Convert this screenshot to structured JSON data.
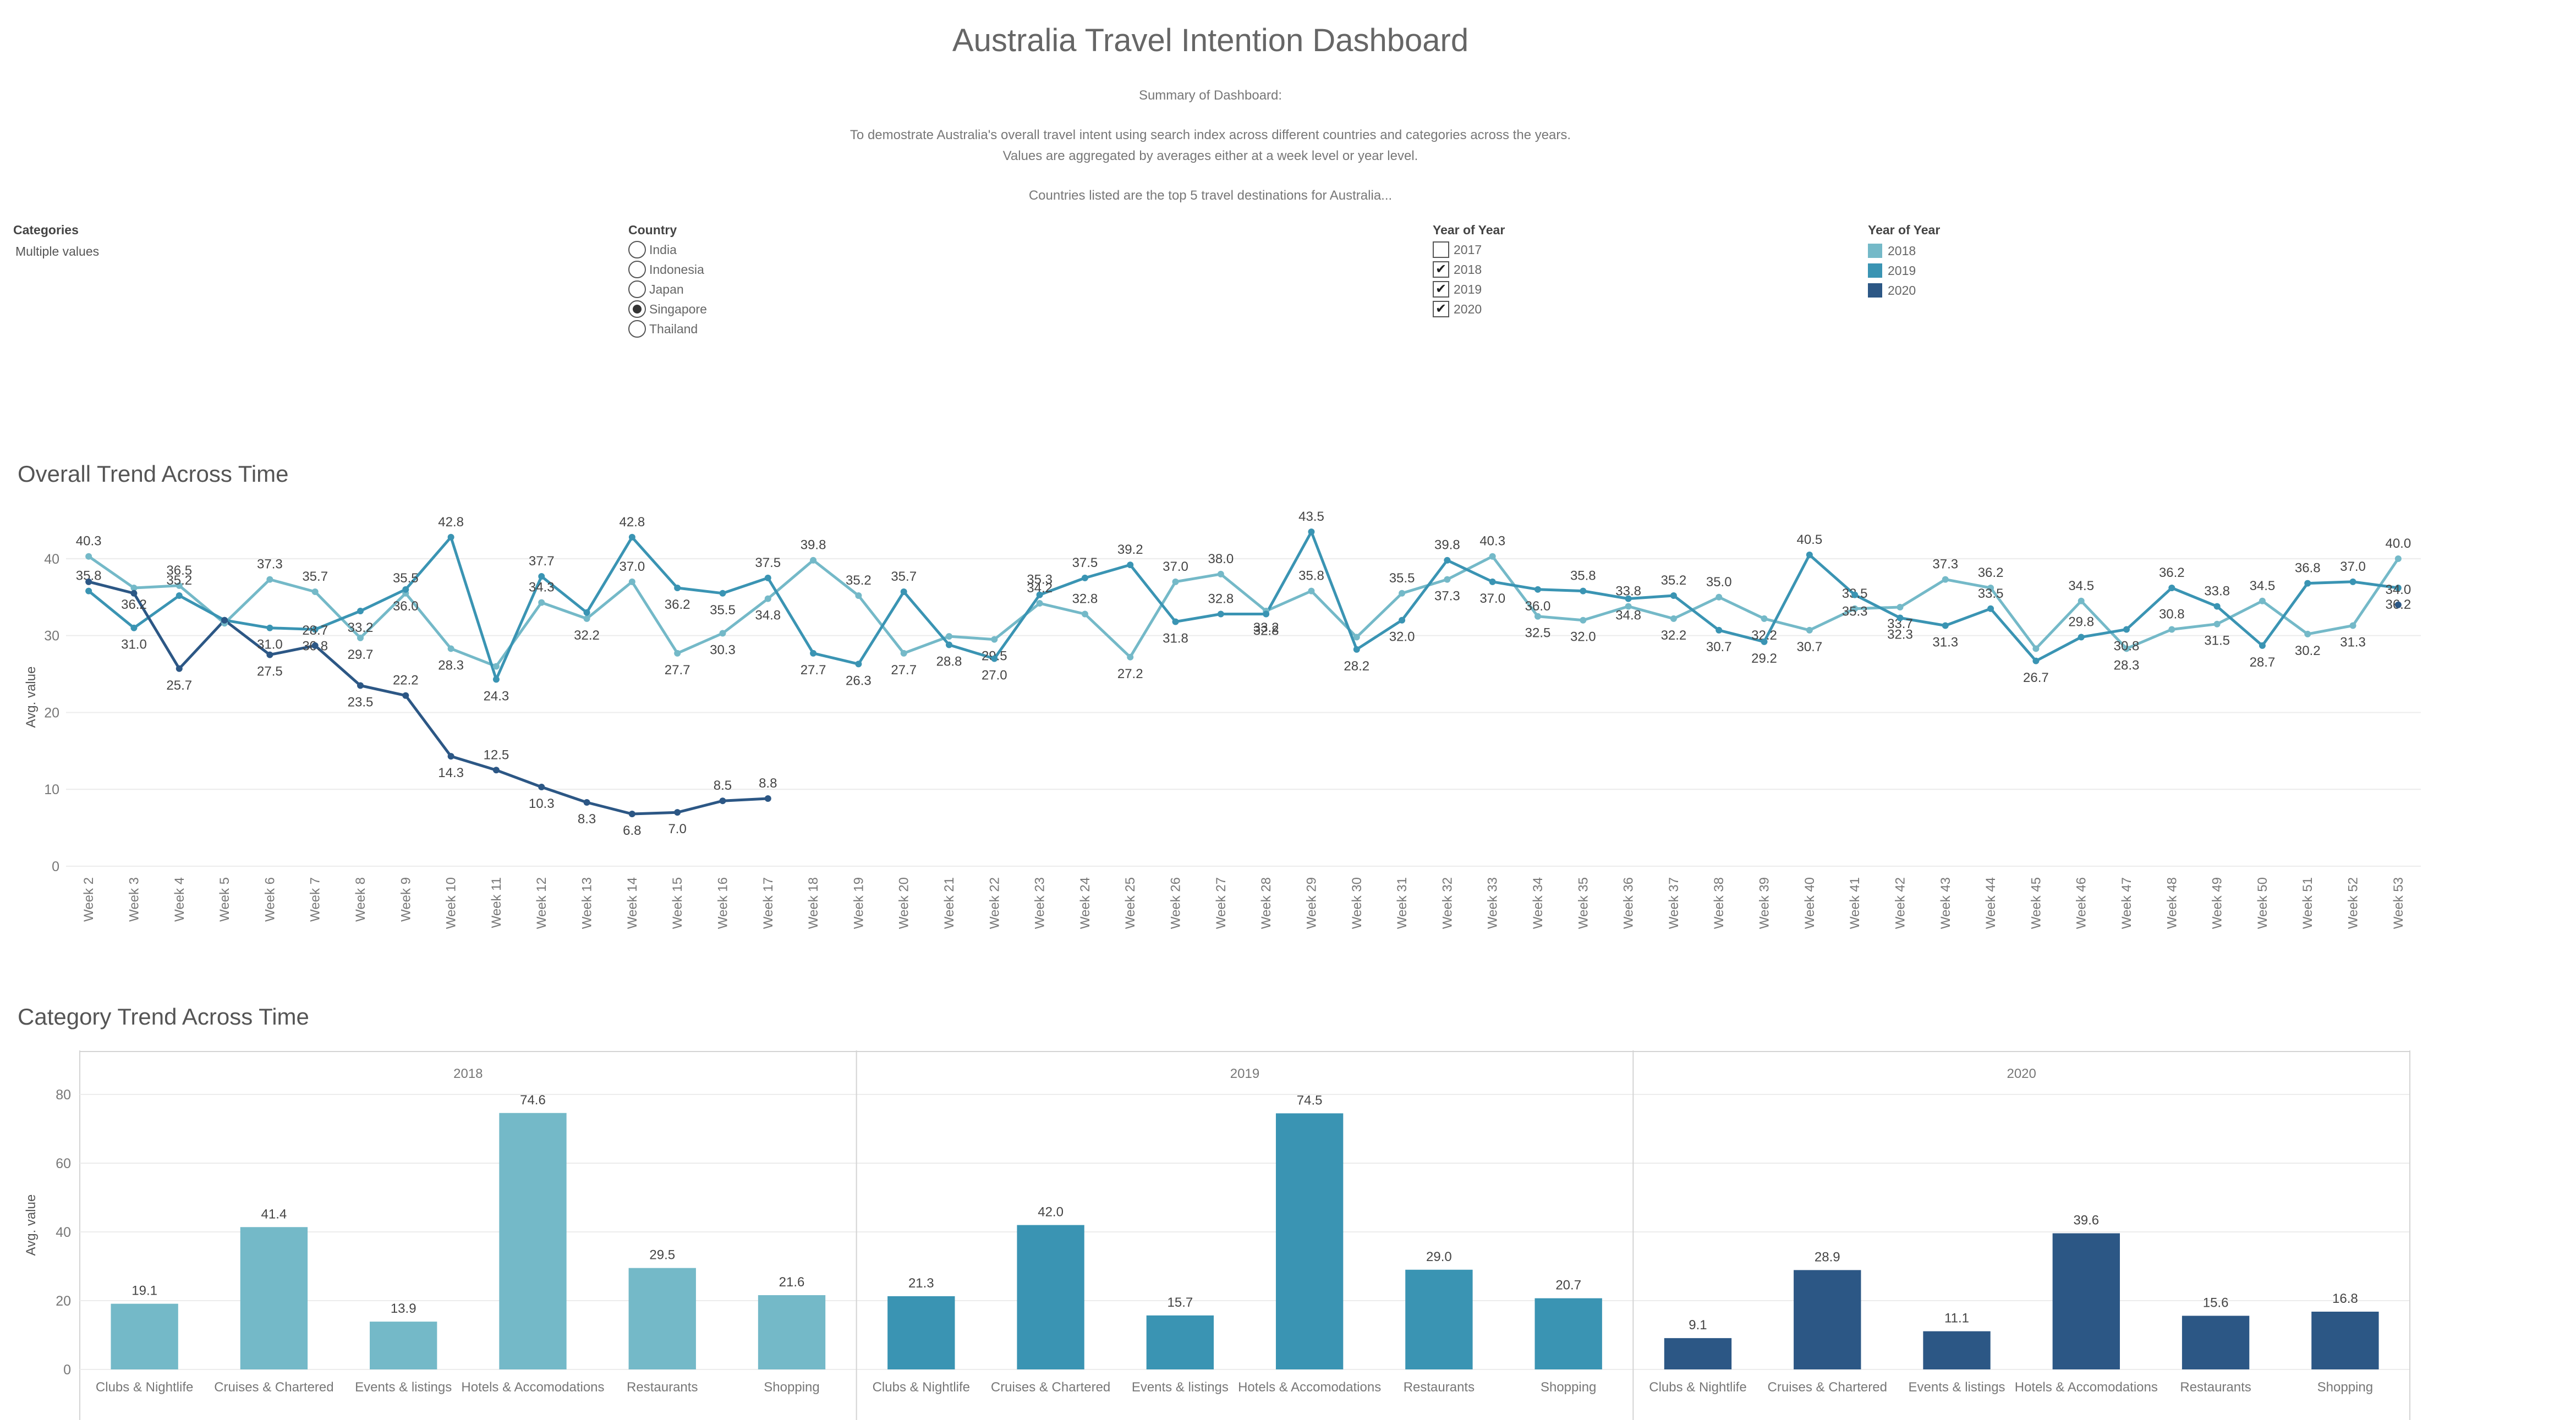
{
  "dashboard": {
    "title": "Australia Travel Intention Dashboard",
    "summary_heading": "Summary of Dashboard:",
    "summary_line1": "To demostrate Australia's overall travel intent using search index across different countries and categories across the years.",
    "summary_line2": "Values are aggregated by averages either at a week level or year level.",
    "summary_line3": "Countries listed are the top 5 travel destinations for Australia..."
  },
  "filters": {
    "categories": {
      "label": "Categories",
      "value": "Multiple values"
    },
    "country": {
      "label": "Country",
      "options": [
        "India",
        "Indonesia",
        "Japan",
        "Singapore",
        "Thailand"
      ],
      "selected": "Singapore"
    },
    "year": {
      "label": "Year of Year",
      "options": [
        {
          "label": "2017",
          "checked": false
        },
        {
          "label": "2018",
          "checked": true
        },
        {
          "label": "2019",
          "checked": true
        },
        {
          "label": "2020",
          "checked": true
        }
      ]
    },
    "legend": {
      "label": "Year of Year",
      "items": [
        {
          "label": "2018",
          "color": "#74b9c8"
        },
        {
          "label": "2019",
          "color": "#3a94b3"
        },
        {
          "label": "2020",
          "color": "#2c5785"
        }
      ]
    }
  },
  "chart_data": [
    {
      "type": "line",
      "title": "Overall Trend Across Time",
      "ylabel": "Avg. value",
      "ylim": [
        0,
        44
      ],
      "yticks": [
        0,
        10,
        20,
        30,
        40
      ],
      "grid": true,
      "categories": [
        "Week 2",
        "Week 3",
        "Week 4",
        "Week 5",
        "Week 6",
        "Week 7",
        "Week 8",
        "Week 9",
        "Week 10",
        "Week 11",
        "Week 12",
        "Week 13",
        "Week 14",
        "Week 15",
        "Week 16",
        "Week 17",
        "Week 18",
        "Week 19",
        "Week 20",
        "Week 21",
        "Week 22",
        "Week 23",
        "Week 24",
        "Week 25",
        "Week 26",
        "Week 27",
        "Week 28",
        "Week 29",
        "Week 30",
        "Week 31",
        "Week 32",
        "Week 33",
        "Week 34",
        "Week 35",
        "Week 36",
        "Week 37",
        "Week 38",
        "Week 39",
        "Week 40",
        "Week 41",
        "Week 42",
        "Week 43",
        "Week 44",
        "Week 45",
        "Week 46",
        "Week 47",
        "Week 48",
        "Week 49",
        "Week 50",
        "Week 51",
        "Week 52",
        "Week 53"
      ],
      "series": [
        {
          "name": "2018",
          "color": "#74b9c8",
          "values": [
            40.3,
            36.2,
            36.5,
            31.6,
            37.3,
            35.7,
            29.7,
            35.5,
            28.3,
            26.0,
            34.3,
            32.2,
            37.0,
            27.7,
            30.3,
            34.8,
            39.8,
            35.2,
            27.7,
            29.9,
            29.5,
            34.2,
            32.8,
            27.2,
            37.0,
            38.0,
            33.2,
            35.8,
            29.8,
            35.5,
            37.3,
            40.3,
            32.5,
            32.0,
            33.8,
            32.2,
            35.0,
            32.2,
            30.7,
            33.5,
            33.7,
            37.3,
            36.2,
            28.3,
            34.5,
            28.3,
            30.8,
            31.5,
            34.5,
            30.2,
            31.3,
            40.0
          ],
          "labels": [
            "40.3",
            "36.2",
            "36.5",
            "",
            "37.3",
            "35.7",
            "29.7",
            "35.5",
            "28.3",
            "",
            "34.3",
            "32.2",
            "37.0",
            "27.7",
            "30.3",
            "34.8",
            "39.8",
            "35.2",
            "27.7",
            "",
            "29.5",
            "34.2",
            "32.8",
            "27.2",
            "37.0",
            "38.0",
            "33.2",
            "35.8",
            "",
            "35.5",
            "37.3",
            "40.3",
            "32.5",
            "32.0",
            "33.8",
            "32.2",
            "35.0",
            "32.2",
            "30.7",
            "33.5",
            "33.7",
            "37.3",
            "36.2",
            "",
            "34.5",
            "28.3",
            "30.8",
            "31.5",
            "34.5",
            "30.2",
            "31.3",
            "40.0"
          ]
        },
        {
          "name": "2019",
          "color": "#3a94b3",
          "values": [
            35.8,
            31.0,
            35.2,
            32.0,
            31.0,
            30.8,
            33.2,
            36.0,
            42.8,
            24.3,
            37.7,
            33.0,
            42.8,
            36.2,
            35.5,
            37.5,
            27.7,
            26.3,
            35.7,
            28.8,
            27.0,
            35.3,
            37.5,
            39.2,
            31.8,
            32.8,
            32.8,
            43.5,
            28.2,
            32.0,
            39.8,
            37.0,
            36.0,
            35.8,
            34.8,
            35.2,
            30.7,
            29.2,
            40.5,
            35.3,
            32.3,
            31.3,
            33.5,
            26.7,
            29.8,
            30.8,
            36.2,
            33.8,
            28.7,
            36.8,
            37.0,
            36.2
          ],
          "labels": [
            "35.8",
            "31.0",
            "35.2",
            "",
            "31.0",
            "30.8",
            "33.2",
            "36.0",
            "42.8",
            "24.3",
            "37.7",
            "",
            "42.8",
            "36.2",
            "35.5",
            "37.5",
            "27.7",
            "26.3",
            "35.7",
            "28.8",
            "27.0",
            "35.3",
            "37.5",
            "39.2",
            "31.8",
            "32.8",
            "32.8",
            "43.5",
            "28.2",
            "32.0",
            "39.8",
            "37.0",
            "36.0",
            "35.8",
            "34.8",
            "35.2",
            "30.7",
            "29.2",
            "40.5",
            "35.3",
            "32.3",
            "31.3",
            "33.5",
            "26.7",
            "29.8",
            "30.8",
            "36.2",
            "33.8",
            "28.7",
            "36.8",
            "37.0",
            "36.2"
          ]
        },
        {
          "name": "2020",
          "color": "#2c5785",
          "values": [
            37.0,
            35.5,
            25.7,
            32.0,
            27.5,
            28.7,
            23.5,
            22.2,
            14.3,
            12.5,
            10.3,
            8.3,
            6.8,
            7.0,
            8.5,
            8.8,
            null,
            null,
            null,
            null,
            null,
            null,
            null,
            null,
            null,
            null,
            null,
            null,
            null,
            null,
            null,
            null,
            null,
            null,
            null,
            null,
            null,
            null,
            null,
            null,
            null,
            null,
            null,
            null,
            null,
            null,
            null,
            null,
            null,
            null,
            null,
            34.0
          ],
          "labels": [
            "",
            "",
            "25.7",
            "",
            "27.5",
            "28.7",
            "23.5",
            "22.2",
            "14.3",
            "12.5",
            "10.3",
            "8.3",
            "6.8",
            "7.0",
            "8.5",
            "8.8",
            "",
            "",
            "",
            "",
            "",
            "",
            "",
            "",
            "",
            "",
            "",
            "",
            "",
            "",
            "",
            "",
            "",
            "",
            "",
            "",
            "",
            "",
            "",
            "",
            "",
            "",
            "",
            "",
            "",
            "",
            "",
            "",
            "",
            "",
            "",
            "34.0"
          ]
        }
      ]
    },
    {
      "type": "bar",
      "title": "Category Trend Across Time",
      "ylabel": "Avg. value",
      "ylim": [
        0,
        84
      ],
      "yticks": [
        0,
        20,
        40,
        60,
        80
      ],
      "grid": true,
      "panels": [
        {
          "name": "2018",
          "color": "#74b9c8",
          "categories": [
            "Clubs & Nightlife",
            "Cruises & Chartered",
            "Events & listings",
            "Hotels & Accomodations",
            "Restaurants",
            "Shopping"
          ],
          "values": [
            19.1,
            41.4,
            13.9,
            74.6,
            29.5,
            21.6
          ]
        },
        {
          "name": "2019",
          "color": "#3a94b3",
          "categories": [
            "Clubs & Nightlife",
            "Cruises & Chartered",
            "Events & listings",
            "Hotels & Accomodations",
            "Restaurants",
            "Shopping"
          ],
          "values": [
            21.3,
            42.0,
            15.7,
            74.5,
            29.0,
            20.7
          ]
        },
        {
          "name": "2020",
          "color": "#2c5785",
          "categories": [
            "Clubs & Nightlife",
            "Cruises & Chartered",
            "Events & listings",
            "Hotels & Accomodations",
            "Restaurants",
            "Shopping"
          ],
          "values": [
            9.1,
            28.9,
            11.1,
            39.6,
            15.6,
            16.8
          ]
        }
      ]
    }
  ]
}
